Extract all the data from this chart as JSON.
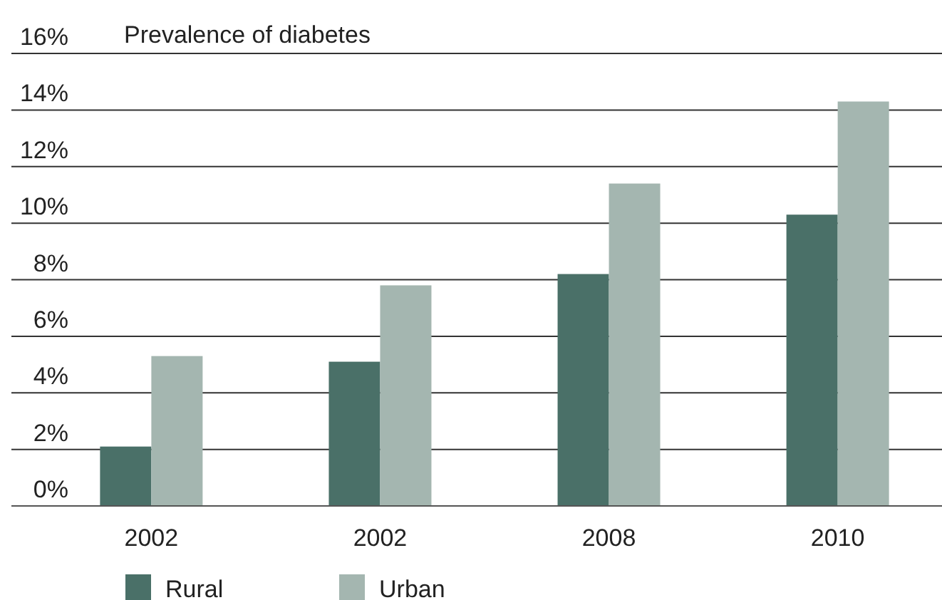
{
  "chart_data": {
    "type": "bar",
    "title": "Prevalence of diabetes",
    "categories": [
      "2002",
      "2002",
      "2008",
      "2010"
    ],
    "series": [
      {
        "name": "Rural",
        "color": "#4a7068",
        "values": [
          2.1,
          5.1,
          8.2,
          10.3
        ]
      },
      {
        "name": "Urban",
        "color": "#a4b6b0",
        "values": [
          5.3,
          7.8,
          11.4,
          14.3
        ]
      }
    ],
    "ylim": [
      0,
      16
    ],
    "yticks": [
      {
        "value": 0,
        "label": "0%"
      },
      {
        "value": 2,
        "label": "2%"
      },
      {
        "value": 4,
        "label": "4%"
      },
      {
        "value": 6,
        "label": "6%"
      },
      {
        "value": 8,
        "label": "8%"
      },
      {
        "value": 10,
        "label": "10%"
      },
      {
        "value": 12,
        "label": "12%"
      },
      {
        "value": 14,
        "label": "14%"
      },
      {
        "value": 16,
        "label": "16%"
      }
    ],
    "grid": "y",
    "legend": "bottom"
  }
}
